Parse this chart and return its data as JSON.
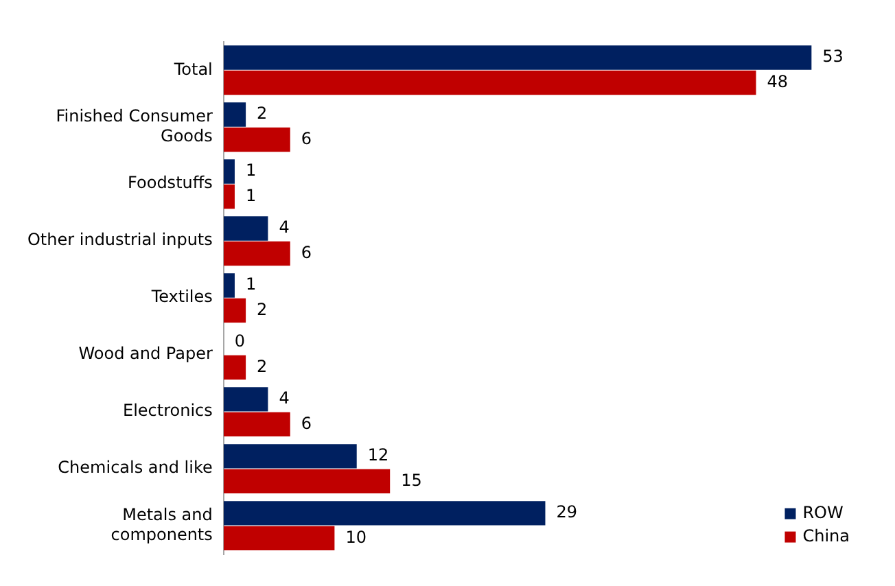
{
  "chart_data": {
    "type": "bar",
    "orientation": "horizontal",
    "categories": [
      "Total",
      "Finished Consumer Goods",
      "Foodstuffs",
      "Other industrial inputs",
      "Textiles",
      "Wood and Paper",
      "Electronics",
      "Chemicals and like",
      "Metals and components"
    ],
    "series": [
      {
        "name": "ROW",
        "color": "#002060",
        "values": [
          53,
          2,
          1,
          4,
          1,
          0,
          4,
          12,
          29
        ]
      },
      {
        "name": "China",
        "color": "#c00000",
        "values": [
          48,
          6,
          1,
          6,
          2,
          2,
          6,
          15,
          10
        ]
      }
    ],
    "data_labels": true,
    "legend": "bottom right"
  }
}
